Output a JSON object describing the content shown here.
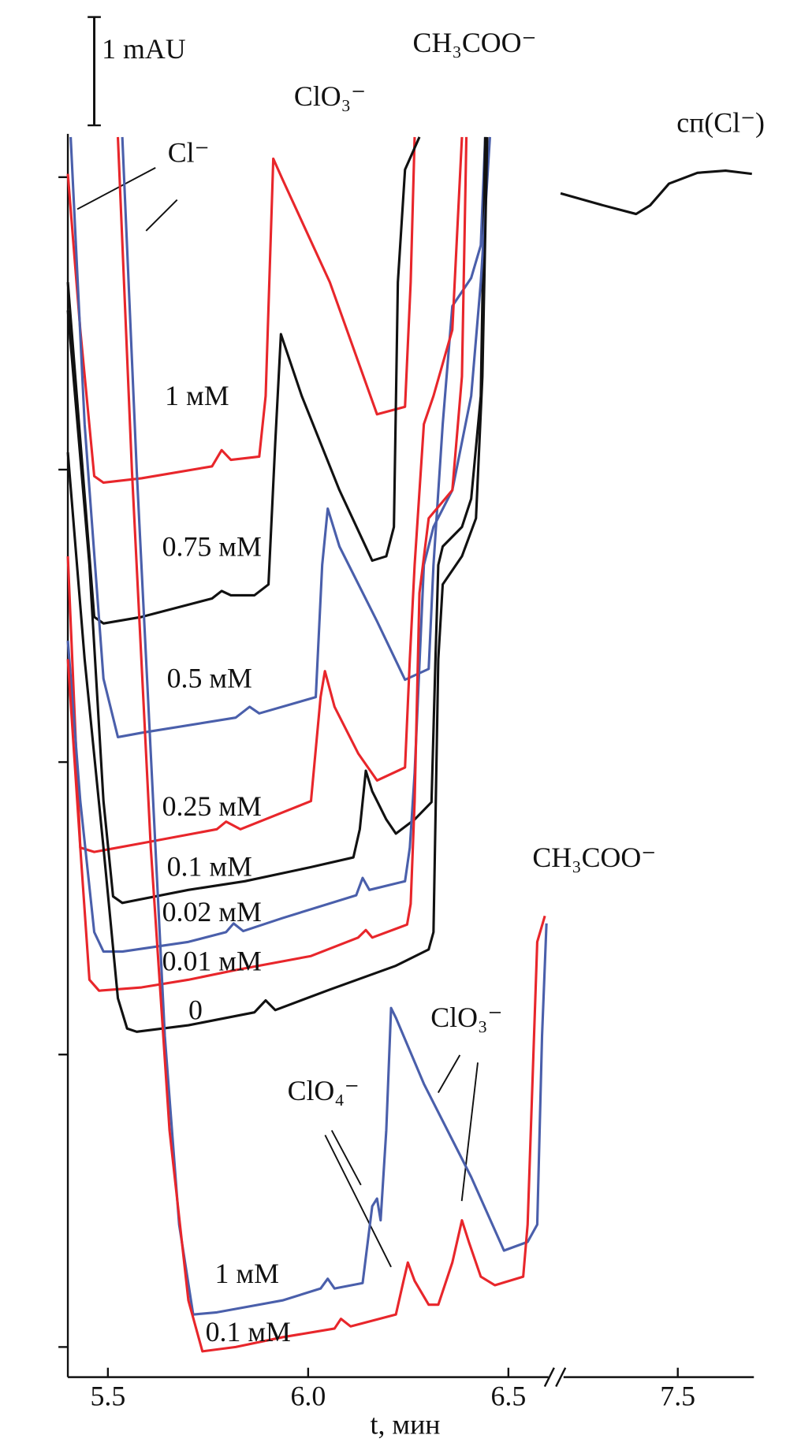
{
  "chart_data": {
    "type": "line",
    "x_label": "t, мин",
    "xlim": [
      5.4,
      7.87
    ],
    "x_break": [
      6.62,
      6.92
    ],
    "break_scale": 0.5,
    "xticks": [
      5.5,
      {
        "value": 6,
        "label": "6.0"
      },
      6.5,
      7.5
    ],
    "ylim": [
      -0.3,
      11.2
    ],
    "yticks": [
      0,
      2.7,
      5.4,
      8.1,
      10.8
    ],
    "ytick_labels": false,
    "scale_bar": {
      "value": 1,
      "label": "1 mAU"
    },
    "annotations": [
      "CH₃COO⁻",
      "ClO₃⁻",
      "Cl⁻",
      "CH₃COO⁻",
      "ClO₃⁻",
      "ClO₄⁻"
    ],
    "series": [
      {
        "name": "1 мМ",
        "color": "#e8262b",
        "x": [
          5.4,
          5.431,
          5.466,
          5.489,
          5.584,
          5.76,
          5.784,
          5.807,
          5.878,
          5.894,
          5.913,
          5.936,
          6.054,
          6.172,
          6.242,
          6.256,
          6.266
        ],
        "values": [
          10.83,
          9.39,
          8.04,
          7.98,
          8.02,
          8.13,
          8.28,
          8.19,
          8.22,
          8.78,
          10.97,
          10.78,
          9.83,
          8.61,
          8.68,
          9.83,
          11.17
        ]
      },
      {
        "name": "0.75 мМ",
        "color": "#111111",
        "x": [
          5.4,
          5.466,
          5.489,
          5.584,
          5.76,
          5.784,
          5.807,
          5.866,
          5.901,
          5.918,
          5.932,
          5.984,
          6.078,
          6.16,
          6.195,
          6.214,
          6.224,
          6.242,
          6.278
        ],
        "values": [
          9.83,
          6.74,
          6.68,
          6.74,
          6.91,
          6.98,
          6.94,
          6.94,
          7.04,
          8.35,
          9.35,
          8.78,
          7.91,
          7.26,
          7.3,
          7.57,
          9.83,
          10.87,
          11.17
        ]
      },
      {
        "name": "0.5 мМ",
        "color": "#4a5fab",
        "x": [
          5.407,
          5.442,
          5.489,
          5.525,
          5.584,
          5.819,
          5.854,
          5.878,
          6.019,
          6.035,
          6.049,
          6.078,
          6.172,
          6.242,
          6.301,
          6.313,
          6.336,
          6.36,
          6.407,
          6.431,
          6.442
        ],
        "values": [
          11.17,
          8.52,
          6.17,
          5.63,
          5.67,
          5.81,
          5.91,
          5.85,
          6.0,
          7.22,
          7.74,
          7.39,
          6.7,
          6.16,
          6.26,
          7.22,
          8.52,
          9.61,
          9.87,
          10.17,
          11.17
        ]
      },
      {
        "name": "0.25 мМ",
        "color": "#e8262b",
        "x": [
          5.4,
          5.431,
          5.466,
          5.584,
          5.772,
          5.795,
          5.831,
          6.007,
          6.031,
          6.042,
          6.066,
          6.125,
          6.172,
          6.242,
          6.254,
          6.266,
          6.289,
          6.313,
          6.36,
          6.384
        ],
        "values": [
          7.3,
          4.61,
          4.57,
          4.65,
          4.78,
          4.85,
          4.78,
          5.04,
          6.0,
          6.24,
          5.91,
          5.48,
          5.23,
          5.35,
          6.35,
          7.22,
          8.52,
          8.78,
          9.39,
          11.17
        ]
      },
      {
        "name": "0.1 мМ",
        "color": "#111111",
        "x": [
          5.4,
          5.454,
          5.489,
          5.513,
          5.536,
          5.701,
          5.842,
          6.007,
          6.113,
          6.129,
          6.144,
          6.16,
          6.195,
          6.219,
          6.266,
          6.308,
          6.318,
          6.325,
          6.336,
          6.384,
          6.407,
          6.431,
          6.442
        ],
        "values": [
          9.57,
          7.22,
          5.04,
          4.16,
          4.1,
          4.22,
          4.3,
          4.43,
          4.52,
          4.78,
          5.32,
          5.13,
          4.87,
          4.74,
          4.87,
          5.03,
          6.35,
          7.22,
          7.39,
          7.57,
          7.83,
          8.78,
          11.17
        ]
      },
      {
        "name": "0.02 мМ",
        "color": "#4a5fab",
        "x": [
          5.4,
          5.431,
          5.466,
          5.489,
          5.536,
          5.701,
          5.795,
          5.814,
          5.838,
          5.936,
          6.12,
          6.136,
          6.153,
          6.242,
          6.254,
          6.266,
          6.289,
          6.313,
          6.36,
          6.407,
          6.431,
          6.454
        ],
        "values": [
          6.52,
          5.04,
          3.83,
          3.65,
          3.65,
          3.74,
          3.83,
          3.91,
          3.84,
          3.96,
          4.17,
          4.33,
          4.22,
          4.3,
          4.61,
          5.3,
          7.22,
          7.57,
          7.91,
          8.78,
          9.83,
          11.17
        ]
      },
      {
        "name": "0.01 мМ",
        "color": "#e8262b",
        "x": [
          5.4,
          5.431,
          5.454,
          5.478,
          5.584,
          5.701,
          5.819,
          6.007,
          6.125,
          6.144,
          6.16,
          6.247,
          6.256,
          6.266,
          6.278,
          6.301,
          6.36,
          6.384,
          6.395
        ],
        "values": [
          6.35,
          4.61,
          3.39,
          3.29,
          3.32,
          3.39,
          3.48,
          3.61,
          3.78,
          3.85,
          3.78,
          3.9,
          4.09,
          5.04,
          6.96,
          7.65,
          7.91,
          8.96,
          11.17
        ]
      },
      {
        "name": "0",
        "color": "#111111",
        "x": [
          5.4,
          5.442,
          5.489,
          5.525,
          5.548,
          5.572,
          5.701,
          5.866,
          5.894,
          5.918,
          6.054,
          6.219,
          6.301,
          6.313,
          6.325,
          6.336,
          6.384,
          6.419,
          6.435,
          6.447
        ],
        "values": [
          8.26,
          6.35,
          4.61,
          3.22,
          2.94,
          2.91,
          2.97,
          3.09,
          3.2,
          3.11,
          3.3,
          3.52,
          3.67,
          3.83,
          6.35,
          7.04,
          7.3,
          7.65,
          8.96,
          11.17
        ]
      },
      {
        "name": "1 мМ",
        "color": "#4a5fab",
        "x": [
          5.536,
          5.572,
          5.607,
          5.642,
          5.678,
          5.713,
          5.772,
          5.936,
          6.031,
          6.049,
          6.066,
          6.136,
          6.16,
          6.172,
          6.181,
          6.195,
          6.207,
          6.219,
          6.289,
          6.407,
          6.489,
          6.548,
          6.572,
          6.584,
          6.595
        ],
        "values": [
          11.17,
          8.09,
          5.48,
          2.87,
          1.13,
          0.3,
          0.32,
          0.43,
          0.54,
          0.63,
          0.54,
          0.59,
          1.3,
          1.37,
          1.17,
          2.0,
          3.13,
          3.04,
          2.43,
          1.57,
          0.89,
          0.97,
          1.13,
          2.87,
          3.91
        ]
      },
      {
        "name": "0.1 мМ",
        "color": "#e8262b",
        "x": [
          5.525,
          5.56,
          5.607,
          5.654,
          5.701,
          5.736,
          5.819,
          5.936,
          6.066,
          6.082,
          6.106,
          6.219,
          6.238,
          6.249,
          6.266,
          6.301,
          6.325,
          6.36,
          6.384,
          6.402,
          6.431,
          6.466,
          6.537,
          6.548,
          6.572,
          6.591
        ],
        "values": [
          11.17,
          8.09,
          4.61,
          2.0,
          0.43,
          -0.04,
          0,
          0.09,
          0.17,
          0.26,
          0.19,
          0.3,
          0.61,
          0.78,
          0.61,
          0.39,
          0.39,
          0.78,
          1.17,
          0.96,
          0.65,
          0.57,
          0.65,
          1.13,
          3.74,
          3.98
        ]
      },
      {
        "name": "сп(Cl⁻)",
        "color": "#111111",
        "x": [
          6.915,
          7.127,
          7.292,
          7.362,
          7.456,
          7.598,
          7.739,
          7.87
        ],
        "values": [
          10.65,
          10.54,
          10.46,
          10.54,
          10.74,
          10.84,
          10.86,
          10.83
        ]
      }
    ]
  }
}
